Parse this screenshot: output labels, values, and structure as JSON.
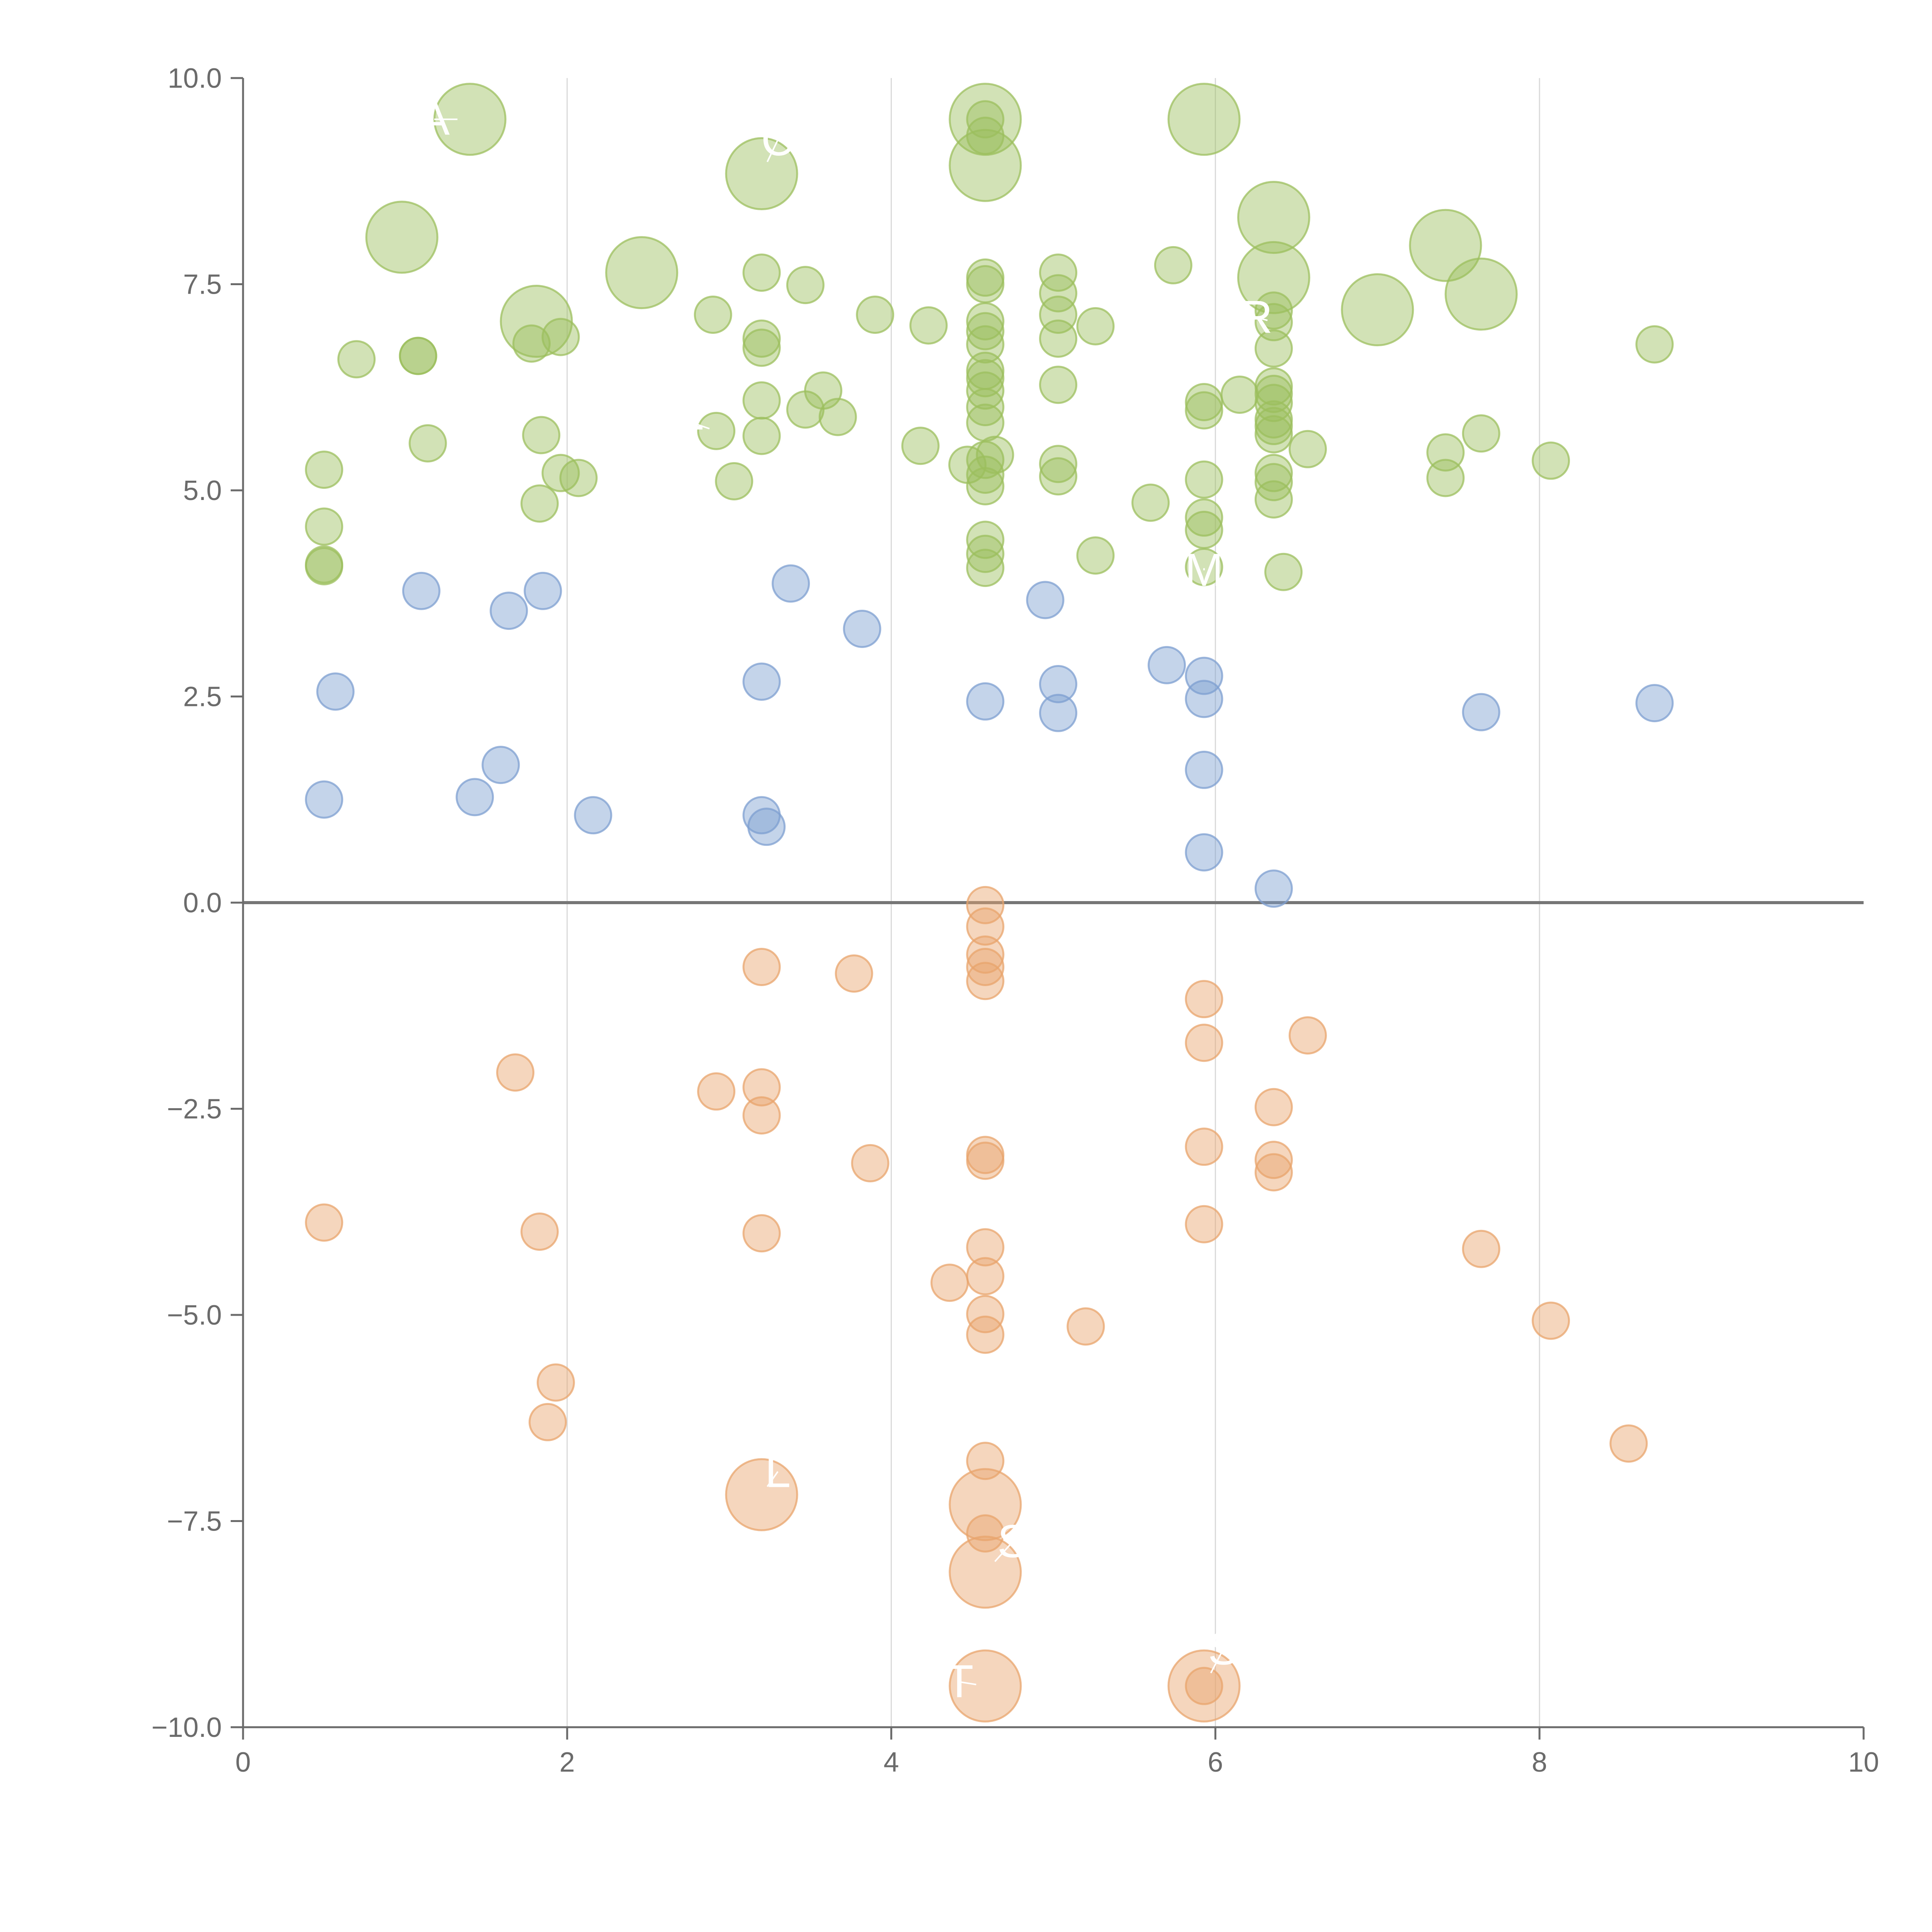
{
  "chart_data": {
    "type": "scatter",
    "title": "",
    "xlabel": "",
    "ylabel": "",
    "xlim": [
      0,
      10
    ],
    "ylim": [
      -10,
      10
    ],
    "grid": "vertical",
    "legend": "none",
    "x_ticks": [
      "0",
      "2",
      "4",
      "6",
      "8",
      "10"
    ],
    "y_ticks": [
      "−10.0",
      "−7.5",
      "−5.0",
      "−2.5",
      "0.0",
      "2.5",
      "5.0",
      "7.5",
      "10.0"
    ],
    "zero_line": 0,
    "colors": {
      "positive_high": "#9cbf5e",
      "positive_low": "#7d9fd0",
      "negative": "#e8a46c"
    },
    "series": [
      {
        "name": "green",
        "color": "#9cbf5e",
        "points": [
          {
            "x": 1.4,
            "y": 9.5,
            "size": 3
          },
          {
            "x": 0.98,
            "y": 8.07,
            "size": 3
          },
          {
            "x": 2.46,
            "y": 7.64,
            "size": 3
          },
          {
            "x": 1.81,
            "y": 7.05,
            "size": 3
          },
          {
            "x": 3.2,
            "y": 8.84,
            "size": 3
          },
          {
            "x": 4.58,
            "y": 9.5,
            "size": 3
          },
          {
            "x": 4.58,
            "y": 8.94,
            "size": 3
          },
          {
            "x": 5.93,
            "y": 9.5,
            "size": 3
          },
          {
            "x": 6.36,
            "y": 8.31,
            "size": 3
          },
          {
            "x": 6.36,
            "y": 7.58,
            "size": 3
          },
          {
            "x": 7.0,
            "y": 7.19,
            "size": 3
          },
          {
            "x": 7.42,
            "y": 7.97,
            "size": 3
          },
          {
            "x": 7.64,
            "y": 7.38,
            "size": 3
          },
          {
            "x": 4.58,
            "y": 9.5,
            "size": 1
          },
          {
            "x": 4.58,
            "y": 9.3,
            "size": 1
          },
          {
            "x": 0.5,
            "y": 5.25,
            "size": 1
          },
          {
            "x": 0.5,
            "y": 4.56,
            "size": 1
          },
          {
            "x": 0.5,
            "y": 4.1,
            "size": 1
          },
          {
            "x": 0.5,
            "y": 4.08,
            "size": 1
          },
          {
            "x": 0.7,
            "y": 6.59,
            "size": 1
          },
          {
            "x": 1.08,
            "y": 6.63,
            "size": 1
          },
          {
            "x": 1.08,
            "y": 6.63,
            "size": 1
          },
          {
            "x": 1.14,
            "y": 5.57,
            "size": 1
          },
          {
            "x": 1.78,
            "y": 6.78,
            "size": 1
          },
          {
            "x": 1.84,
            "y": 5.67,
            "size": 1
          },
          {
            "x": 1.83,
            "y": 4.84,
            "size": 1
          },
          {
            "x": 1.96,
            "y": 5.21,
            "size": 1
          },
          {
            "x": 1.96,
            "y": 6.86,
            "size": 1
          },
          {
            "x": 2.07,
            "y": 5.15,
            "size": 1
          },
          {
            "x": 2.9,
            "y": 7.13,
            "size": 1
          },
          {
            "x": 2.92,
            "y": 5.72,
            "size": 1
          },
          {
            "x": 3.03,
            "y": 5.11,
            "size": 1
          },
          {
            "x": 3.2,
            "y": 7.64,
            "size": 1
          },
          {
            "x": 3.2,
            "y": 6.84,
            "size": 1
          },
          {
            "x": 3.2,
            "y": 6.73,
            "size": 1
          },
          {
            "x": 3.2,
            "y": 6.09,
            "size": 1
          },
          {
            "x": 3.2,
            "y": 5.66,
            "size": 1
          },
          {
            "x": 3.47,
            "y": 7.49,
            "size": 1
          },
          {
            "x": 3.47,
            "y": 5.98,
            "size": 1
          },
          {
            "x": 3.58,
            "y": 6.21,
            "size": 1
          },
          {
            "x": 3.67,
            "y": 5.89,
            "size": 1
          },
          {
            "x": 3.9,
            "y": 7.13,
            "size": 1
          },
          {
            "x": 4.23,
            "y": 7.0,
            "size": 1
          },
          {
            "x": 4.18,
            "y": 5.54,
            "size": 1
          },
          {
            "x": 4.47,
            "y": 5.31,
            "size": 1
          },
          {
            "x": 4.58,
            "y": 7.58,
            "size": 1
          },
          {
            "x": 4.58,
            "y": 7.5,
            "size": 1
          },
          {
            "x": 4.58,
            "y": 7.05,
            "size": 1
          },
          {
            "x": 4.58,
            "y": 6.93,
            "size": 1
          },
          {
            "x": 4.58,
            "y": 6.77,
            "size": 1
          },
          {
            "x": 4.58,
            "y": 6.45,
            "size": 1
          },
          {
            "x": 4.58,
            "y": 6.36,
            "size": 1
          },
          {
            "x": 4.58,
            "y": 6.21,
            "size": 1
          },
          {
            "x": 4.58,
            "y": 6.01,
            "size": 1
          },
          {
            "x": 4.58,
            "y": 5.82,
            "size": 1
          },
          {
            "x": 4.58,
            "y": 5.37,
            "size": 1
          },
          {
            "x": 4.58,
            "y": 5.19,
            "size": 1
          },
          {
            "x": 4.58,
            "y": 5.05,
            "size": 1
          },
          {
            "x": 4.58,
            "y": 4.4,
            "size": 1
          },
          {
            "x": 4.58,
            "y": 4.23,
            "size": 1
          },
          {
            "x": 4.58,
            "y": 4.06,
            "size": 1
          },
          {
            "x": 4.64,
            "y": 5.43,
            "size": 1
          },
          {
            "x": 5.03,
            "y": 7.64,
            "size": 1
          },
          {
            "x": 5.03,
            "y": 7.39,
            "size": 1
          },
          {
            "x": 5.03,
            "y": 7.13,
            "size": 1
          },
          {
            "x": 5.03,
            "y": 6.84,
            "size": 1
          },
          {
            "x": 5.03,
            "y": 6.28,
            "size": 1
          },
          {
            "x": 5.03,
            "y": 5.32,
            "size": 1
          },
          {
            "x": 5.03,
            "y": 5.17,
            "size": 1
          },
          {
            "x": 5.26,
            "y": 6.99,
            "size": 1
          },
          {
            "x": 5.26,
            "y": 4.21,
            "size": 1
          },
          {
            "x": 5.6,
            "y": 4.85,
            "size": 1
          },
          {
            "x": 5.74,
            "y": 7.73,
            "size": 1
          },
          {
            "x": 5.93,
            "y": 6.07,
            "size": 1
          },
          {
            "x": 5.93,
            "y": 5.97,
            "size": 1
          },
          {
            "x": 5.93,
            "y": 5.13,
            "size": 1
          },
          {
            "x": 5.93,
            "y": 4.67,
            "size": 1
          },
          {
            "x": 5.93,
            "y": 4.52,
            "size": 1
          },
          {
            "x": 5.93,
            "y": 4.07,
            "size": 1
          },
          {
            "x": 6.15,
            "y": 6.16,
            "size": 1
          },
          {
            "x": 6.36,
            "y": 7.18,
            "size": 1
          },
          {
            "x": 6.36,
            "y": 7.04,
            "size": 1
          },
          {
            "x": 6.36,
            "y": 6.72,
            "size": 1
          },
          {
            "x": 6.36,
            "y": 6.26,
            "size": 1
          },
          {
            "x": 6.36,
            "y": 6.17,
            "size": 1
          },
          {
            "x": 6.36,
            "y": 6.06,
            "size": 1
          },
          {
            "x": 6.36,
            "y": 5.86,
            "size": 1
          },
          {
            "x": 6.36,
            "y": 5.78,
            "size": 1
          },
          {
            "x": 6.36,
            "y": 5.68,
            "size": 1
          },
          {
            "x": 6.36,
            "y": 5.21,
            "size": 1
          },
          {
            "x": 6.36,
            "y": 5.1,
            "size": 1
          },
          {
            "x": 6.36,
            "y": 4.89,
            "size": 1
          },
          {
            "x": 6.42,
            "y": 4.01,
            "size": 1
          },
          {
            "x": 6.57,
            "y": 5.5,
            "size": 1
          },
          {
            "x": 7.42,
            "y": 5.46,
            "size": 1
          },
          {
            "x": 7.42,
            "y": 5.15,
            "size": 1
          },
          {
            "x": 7.64,
            "y": 5.69,
            "size": 1
          },
          {
            "x": 8.07,
            "y": 5.36,
            "size": 1
          },
          {
            "x": 8.71,
            "y": 6.77,
            "size": 1
          }
        ]
      },
      {
        "name": "blue",
        "color": "#7d9fd0",
        "points": [
          {
            "x": 0.5,
            "y": 1.25,
            "size": 1
          },
          {
            "x": 0.57,
            "y": 2.56,
            "size": 1
          },
          {
            "x": 1.1,
            "y": 3.78,
            "size": 1
          },
          {
            "x": 1.43,
            "y": 1.28,
            "size": 1
          },
          {
            "x": 1.59,
            "y": 1.67,
            "size": 1
          },
          {
            "x": 1.64,
            "y": 3.54,
            "size": 1
          },
          {
            "x": 1.85,
            "y": 3.78,
            "size": 1
          },
          {
            "x": 2.16,
            "y": 1.06,
            "size": 1
          },
          {
            "x": 3.2,
            "y": 2.68,
            "size": 1
          },
          {
            "x": 3.2,
            "y": 1.06,
            "size": 1
          },
          {
            "x": 3.23,
            "y": 0.92,
            "size": 1
          },
          {
            "x": 3.38,
            "y": 3.87,
            "size": 1
          },
          {
            "x": 3.82,
            "y": 3.32,
            "size": 1
          },
          {
            "x": 4.58,
            "y": 2.44,
            "size": 1
          },
          {
            "x": 4.95,
            "y": 3.67,
            "size": 1
          },
          {
            "x": 5.03,
            "y": 2.65,
            "size": 1
          },
          {
            "x": 5.03,
            "y": 2.3,
            "size": 1
          },
          {
            "x": 5.7,
            "y": 2.88,
            "size": 1
          },
          {
            "x": 5.93,
            "y": 2.75,
            "size": 1
          },
          {
            "x": 5.93,
            "y": 2.47,
            "size": 1
          },
          {
            "x": 5.93,
            "y": 1.61,
            "size": 1
          },
          {
            "x": 5.93,
            "y": 0.61,
            "size": 1
          },
          {
            "x": 6.36,
            "y": 0.17,
            "size": 1
          },
          {
            "x": 7.64,
            "y": 2.31,
            "size": 1
          },
          {
            "x": 8.71,
            "y": 2.42,
            "size": 1
          }
        ]
      },
      {
        "name": "orange",
        "color": "#e8a46c",
        "points": [
          {
            "x": 3.2,
            "y": -7.18,
            "size": 3
          },
          {
            "x": 4.58,
            "y": -7.3,
            "size": 3
          },
          {
            "x": 4.58,
            "y": -8.12,
            "size": 3
          },
          {
            "x": 4.58,
            "y": -9.5,
            "size": 3
          },
          {
            "x": 5.93,
            "y": -9.5,
            "size": 3
          },
          {
            "x": 0.5,
            "y": -3.88,
            "size": 1
          },
          {
            "x": 1.68,
            "y": -2.06,
            "size": 1
          },
          {
            "x": 1.83,
            "y": -3.99,
            "size": 1
          },
          {
            "x": 1.88,
            "y": -6.3,
            "size": 1
          },
          {
            "x": 1.93,
            "y": -5.82,
            "size": 1
          },
          {
            "x": 2.92,
            "y": -2.29,
            "size": 1
          },
          {
            "x": 3.2,
            "y": -0.78,
            "size": 1
          },
          {
            "x": 3.2,
            "y": -2.24,
            "size": 1
          },
          {
            "x": 3.2,
            "y": -2.58,
            "size": 1
          },
          {
            "x": 3.2,
            "y": -4.01,
            "size": 1
          },
          {
            "x": 3.77,
            "y": -0.86,
            "size": 1
          },
          {
            "x": 3.87,
            "y": -3.16,
            "size": 1
          },
          {
            "x": 4.36,
            "y": -4.61,
            "size": 1
          },
          {
            "x": 4.58,
            "y": -0.03,
            "size": 1
          },
          {
            "x": 4.58,
            "y": -0.29,
            "size": 1
          },
          {
            "x": 4.58,
            "y": -0.63,
            "size": 1
          },
          {
            "x": 4.58,
            "y": -0.78,
            "size": 1
          },
          {
            "x": 4.58,
            "y": -0.95,
            "size": 1
          },
          {
            "x": 4.58,
            "y": -3.06,
            "size": 1
          },
          {
            "x": 4.58,
            "y": -3.13,
            "size": 1
          },
          {
            "x": 4.58,
            "y": -4.18,
            "size": 1
          },
          {
            "x": 4.58,
            "y": -4.53,
            "size": 1
          },
          {
            "x": 4.58,
            "y": -4.99,
            "size": 1
          },
          {
            "x": 4.58,
            "y": -5.24,
            "size": 1
          },
          {
            "x": 4.58,
            "y": -6.77,
            "size": 1
          },
          {
            "x": 4.58,
            "y": -7.65,
            "size": 1
          },
          {
            "x": 5.2,
            "y": -5.14,
            "size": 1
          },
          {
            "x": 5.93,
            "y": -1.17,
            "size": 1
          },
          {
            "x": 5.93,
            "y": -1.7,
            "size": 1
          },
          {
            "x": 5.93,
            "y": -2.96,
            "size": 1
          },
          {
            "x": 5.93,
            "y": -3.9,
            "size": 1
          },
          {
            "x": 5.93,
            "y": -9.5,
            "size": 1
          },
          {
            "x": 6.36,
            "y": -2.48,
            "size": 1
          },
          {
            "x": 6.36,
            "y": -3.12,
            "size": 1
          },
          {
            "x": 6.36,
            "y": -3.27,
            "size": 1
          },
          {
            "x": 6.57,
            "y": -1.61,
            "size": 1
          },
          {
            "x": 7.64,
            "y": -4.2,
            "size": 1
          },
          {
            "x": 8.07,
            "y": -5.07,
            "size": 1
          },
          {
            "x": 8.55,
            "y": -6.56,
            "size": 1
          }
        ]
      }
    ],
    "annotations": [
      {
        "text": "A",
        "x": 1.18,
        "y": 9.5,
        "anchor_x": 1.4,
        "anchor_y": 9.5
      },
      {
        "text": "C",
        "x": 3.3,
        "y": 9.25,
        "anchor_x": 3.2,
        "anchor_y": 8.84
      },
      {
        "text": "-",
        "x": 2.8,
        "y": 5.8,
        "anchor_x": 2.92,
        "anchor_y": 5.72
      },
      {
        "text": "R",
        "x": 6.25,
        "y": 7.1,
        "anchor_x": 6.36,
        "anchor_y": 7.04
      },
      {
        "text": "M",
        "x": 5.93,
        "y": 4.03,
        "anchor_x": 5.93,
        "anchor_y": 4.07
      },
      {
        "text": "L",
        "x": 3.3,
        "y": -6.9,
        "anchor_x": 3.2,
        "anchor_y": -7.18
      },
      {
        "text": "S",
        "x": 4.75,
        "y": -7.75,
        "anchor_x": 4.58,
        "anchor_y": -8.12
      },
      {
        "text": "T",
        "x": 4.42,
        "y": -9.45,
        "anchor_x": 4.58,
        "anchor_y": -9.5
      },
      {
        "text": "S",
        "x": 6.05,
        "y": -9.05,
        "anchor_x": 5.93,
        "anchor_y": -9.5
      }
    ]
  }
}
